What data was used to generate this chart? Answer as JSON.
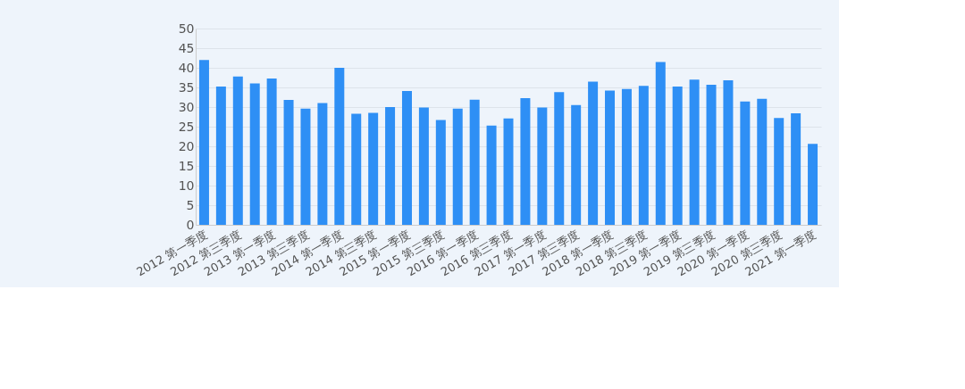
{
  "chart_data": {
    "type": "bar",
    "categories": [
      "2012 第一季度",
      null,
      "2012 第三季度",
      null,
      "2013 第一季度",
      null,
      "2013 第三季度",
      null,
      "2014 第一季度",
      null,
      "2014 第三季度",
      null,
      "2015 第一季度",
      null,
      "2015 第三季度",
      null,
      "2016 第一季度",
      null,
      "2016 第三季度",
      null,
      "2017 第一季度",
      null,
      "2017 第三季度",
      null,
      "2018 第一季度",
      null,
      "2018 第三季度",
      null,
      "2019 第一季度",
      null,
      "2019 第三季度",
      null,
      "2020 第一季度",
      null,
      "2020 第三季度",
      null,
      "2021 第一季度"
    ],
    "values": [
      42,
      35.2,
      37.8,
      36,
      37.3,
      31.8,
      29.6,
      31,
      40,
      28.3,
      28.5,
      30,
      34.1,
      29.9,
      26.7,
      29.6,
      31.9,
      25.3,
      27.1,
      32.3,
      29.9,
      33.8,
      30.5,
      36.5,
      34.2,
      34.6,
      35.4,
      41.5,
      35.2,
      37,
      35.7,
      36.8,
      31.4,
      32.1,
      27.2,
      28.4,
      20.6
    ],
    "color": "#2e8ff5",
    "ylim": [
      0,
      50
    ],
    "yticks": [
      0,
      5,
      10,
      15,
      20,
      25,
      30,
      35,
      40,
      45,
      50
    ],
    "grid": "y"
  }
}
